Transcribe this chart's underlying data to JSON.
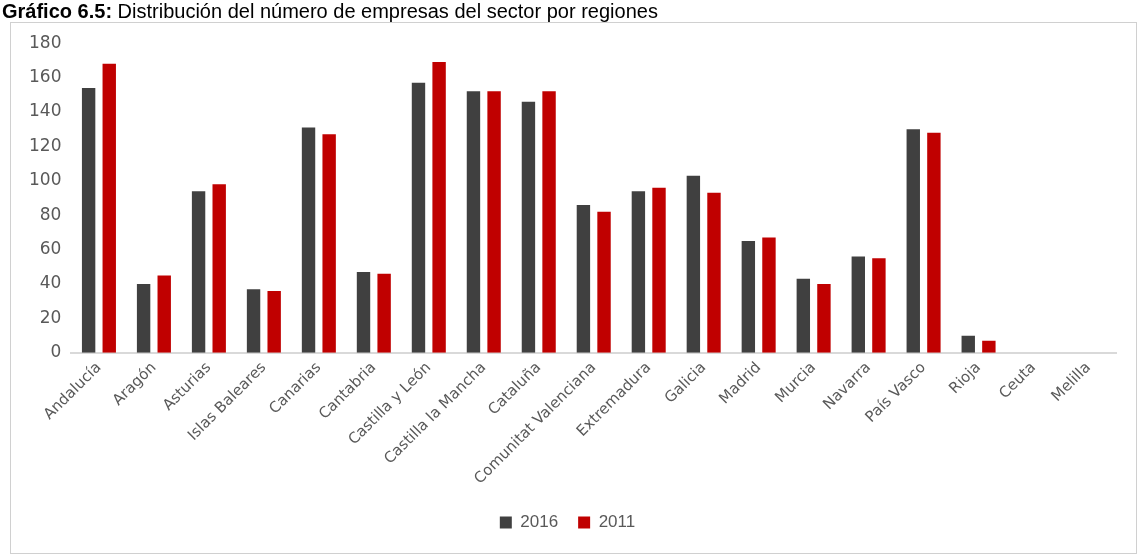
{
  "chart_data": {
    "type": "bar",
    "title": "Gráfico 6.5: Distribución del número de empresas del sector por regiones",
    "categories": [
      "Andalucía",
      "Aragón",
      "Asturias",
      "Islas Baleares",
      "Canarias",
      "Cantabria",
      "Castilla y León",
      "Castilla la Mancha",
      "Cataluña",
      "Comunitat Valenciana",
      "Extremadura",
      "Galicia",
      "Madrid",
      "Murcia",
      "Navarra",
      "País Vasco",
      "Rioja",
      "Ceuta",
      "Melilla"
    ],
    "series": [
      {
        "name": "2016",
        "color": "#404040",
        "values": [
          154,
          40,
          94,
          37,
          131,
          47,
          157,
          152,
          146,
          86,
          94,
          103,
          65,
          43,
          56,
          130,
          10,
          0,
          0
        ]
      },
      {
        "name": "2011",
        "color": "#c00000",
        "values": [
          168,
          45,
          98,
          36,
          127,
          46,
          169,
          152,
          152,
          82,
          96,
          93,
          67,
          40,
          55,
          128,
          7,
          0,
          0
        ]
      }
    ],
    "ylim": [
      0,
      180
    ],
    "yticks": [
      0,
      20,
      40,
      60,
      80,
      100,
      120,
      140,
      160,
      180
    ],
    "grid": false,
    "legend": "bottom"
  }
}
